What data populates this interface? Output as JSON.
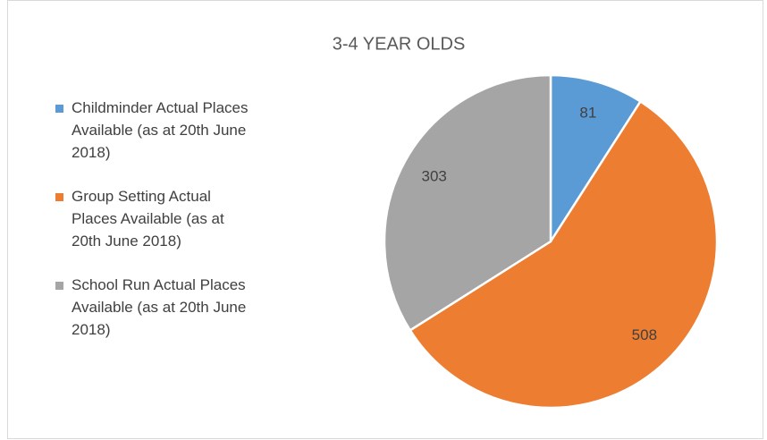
{
  "chart_data": {
    "type": "pie",
    "title": "3-4 YEAR OLDS",
    "categories": [
      "Childminder Actual Places Available (as at 20th June 2018)",
      "Group Setting Actual Places Available (as at 20th June 2018)",
      "School Run Actual Places Available (as at 20th June 2018)"
    ],
    "values": [
      81,
      508,
      303
    ],
    "colors": [
      "#5b9bd5",
      "#ed7d31",
      "#a5a5a5"
    ],
    "legend": "left"
  }
}
